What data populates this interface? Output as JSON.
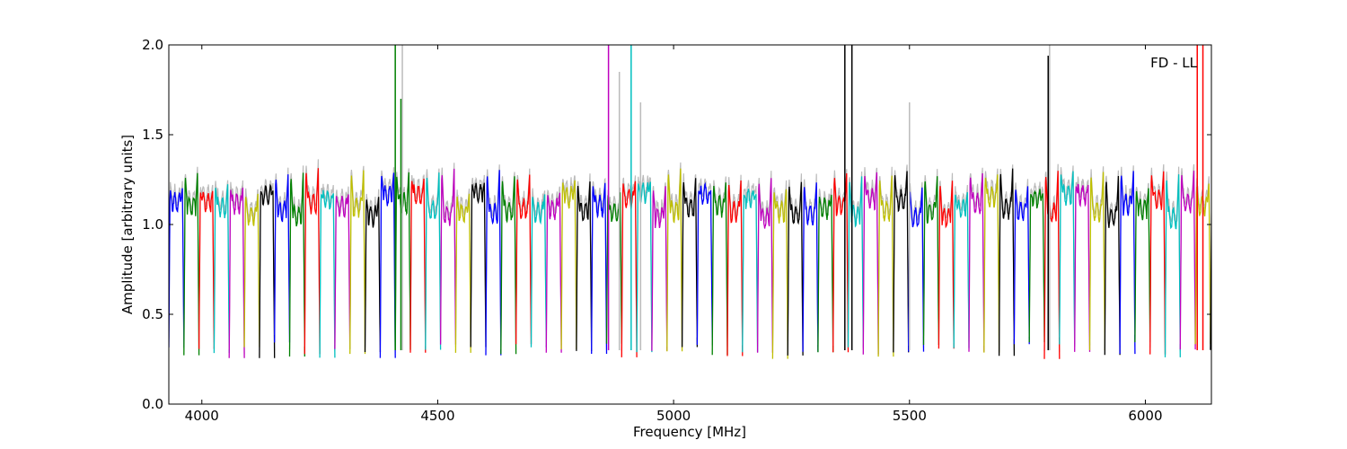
{
  "chart_data": {
    "type": "line",
    "title": "",
    "xlabel": "Frequency [MHz]",
    "ylabel": "Amplitude [arbitrary units]",
    "xlim": [
      3930,
      6140
    ],
    "ylim": [
      0.0,
      2.0
    ],
    "x_ticks": [
      4000,
      4500,
      5000,
      5500,
      6000
    ],
    "x_tick_labels": [
      "4000",
      "4500",
      "5000",
      "5500",
      "6000"
    ],
    "y_ticks": [
      0.0,
      0.5,
      1.0,
      1.5,
      2.0
    ],
    "y_tick_labels": [
      "0.0",
      "0.5",
      "1.0",
      "1.5",
      "2.0"
    ],
    "grid": false,
    "annotation": "FD - LL",
    "annotation_position": "top-right",
    "background_series_color": "#bbbbbb",
    "spw_start": 3930,
    "spw_width": 32,
    "palette": [
      "#0000ff",
      "#008000",
      "#ff0000",
      "#00bfbf",
      "#bf00bf",
      "#bfbf00",
      "#000000"
    ],
    "spikes": [
      {
        "x": 4410,
        "y": 2.0,
        "color": "#008000"
      },
      {
        "x": 4422,
        "y": 1.7,
        "color": "#008000"
      },
      {
        "x": 4425,
        "y": 2.0,
        "color": "#bbbbbb"
      },
      {
        "x": 4862,
        "y": 2.0,
        "color": "#bf00bf"
      },
      {
        "x": 4885,
        "y": 1.85,
        "color": "#bbbbbb"
      },
      {
        "x": 4910,
        "y": 2.0,
        "color": "#00bfbf"
      },
      {
        "x": 4930,
        "y": 1.68,
        "color": "#bbbbbb"
      },
      {
        "x": 5363,
        "y": 2.0,
        "color": "#000000"
      },
      {
        "x": 5378,
        "y": 2.0,
        "color": "#000000"
      },
      {
        "x": 5500,
        "y": 1.68,
        "color": "#bbbbbb"
      },
      {
        "x": 5794,
        "y": 1.94,
        "color": "#000000"
      },
      {
        "x": 5797,
        "y": 2.0,
        "color": "#bbbbbb"
      },
      {
        "x": 6110,
        "y": 2.0,
        "color": "#ff0000"
      },
      {
        "x": 6122,
        "y": 2.0,
        "color": "#ff0000"
      }
    ]
  }
}
